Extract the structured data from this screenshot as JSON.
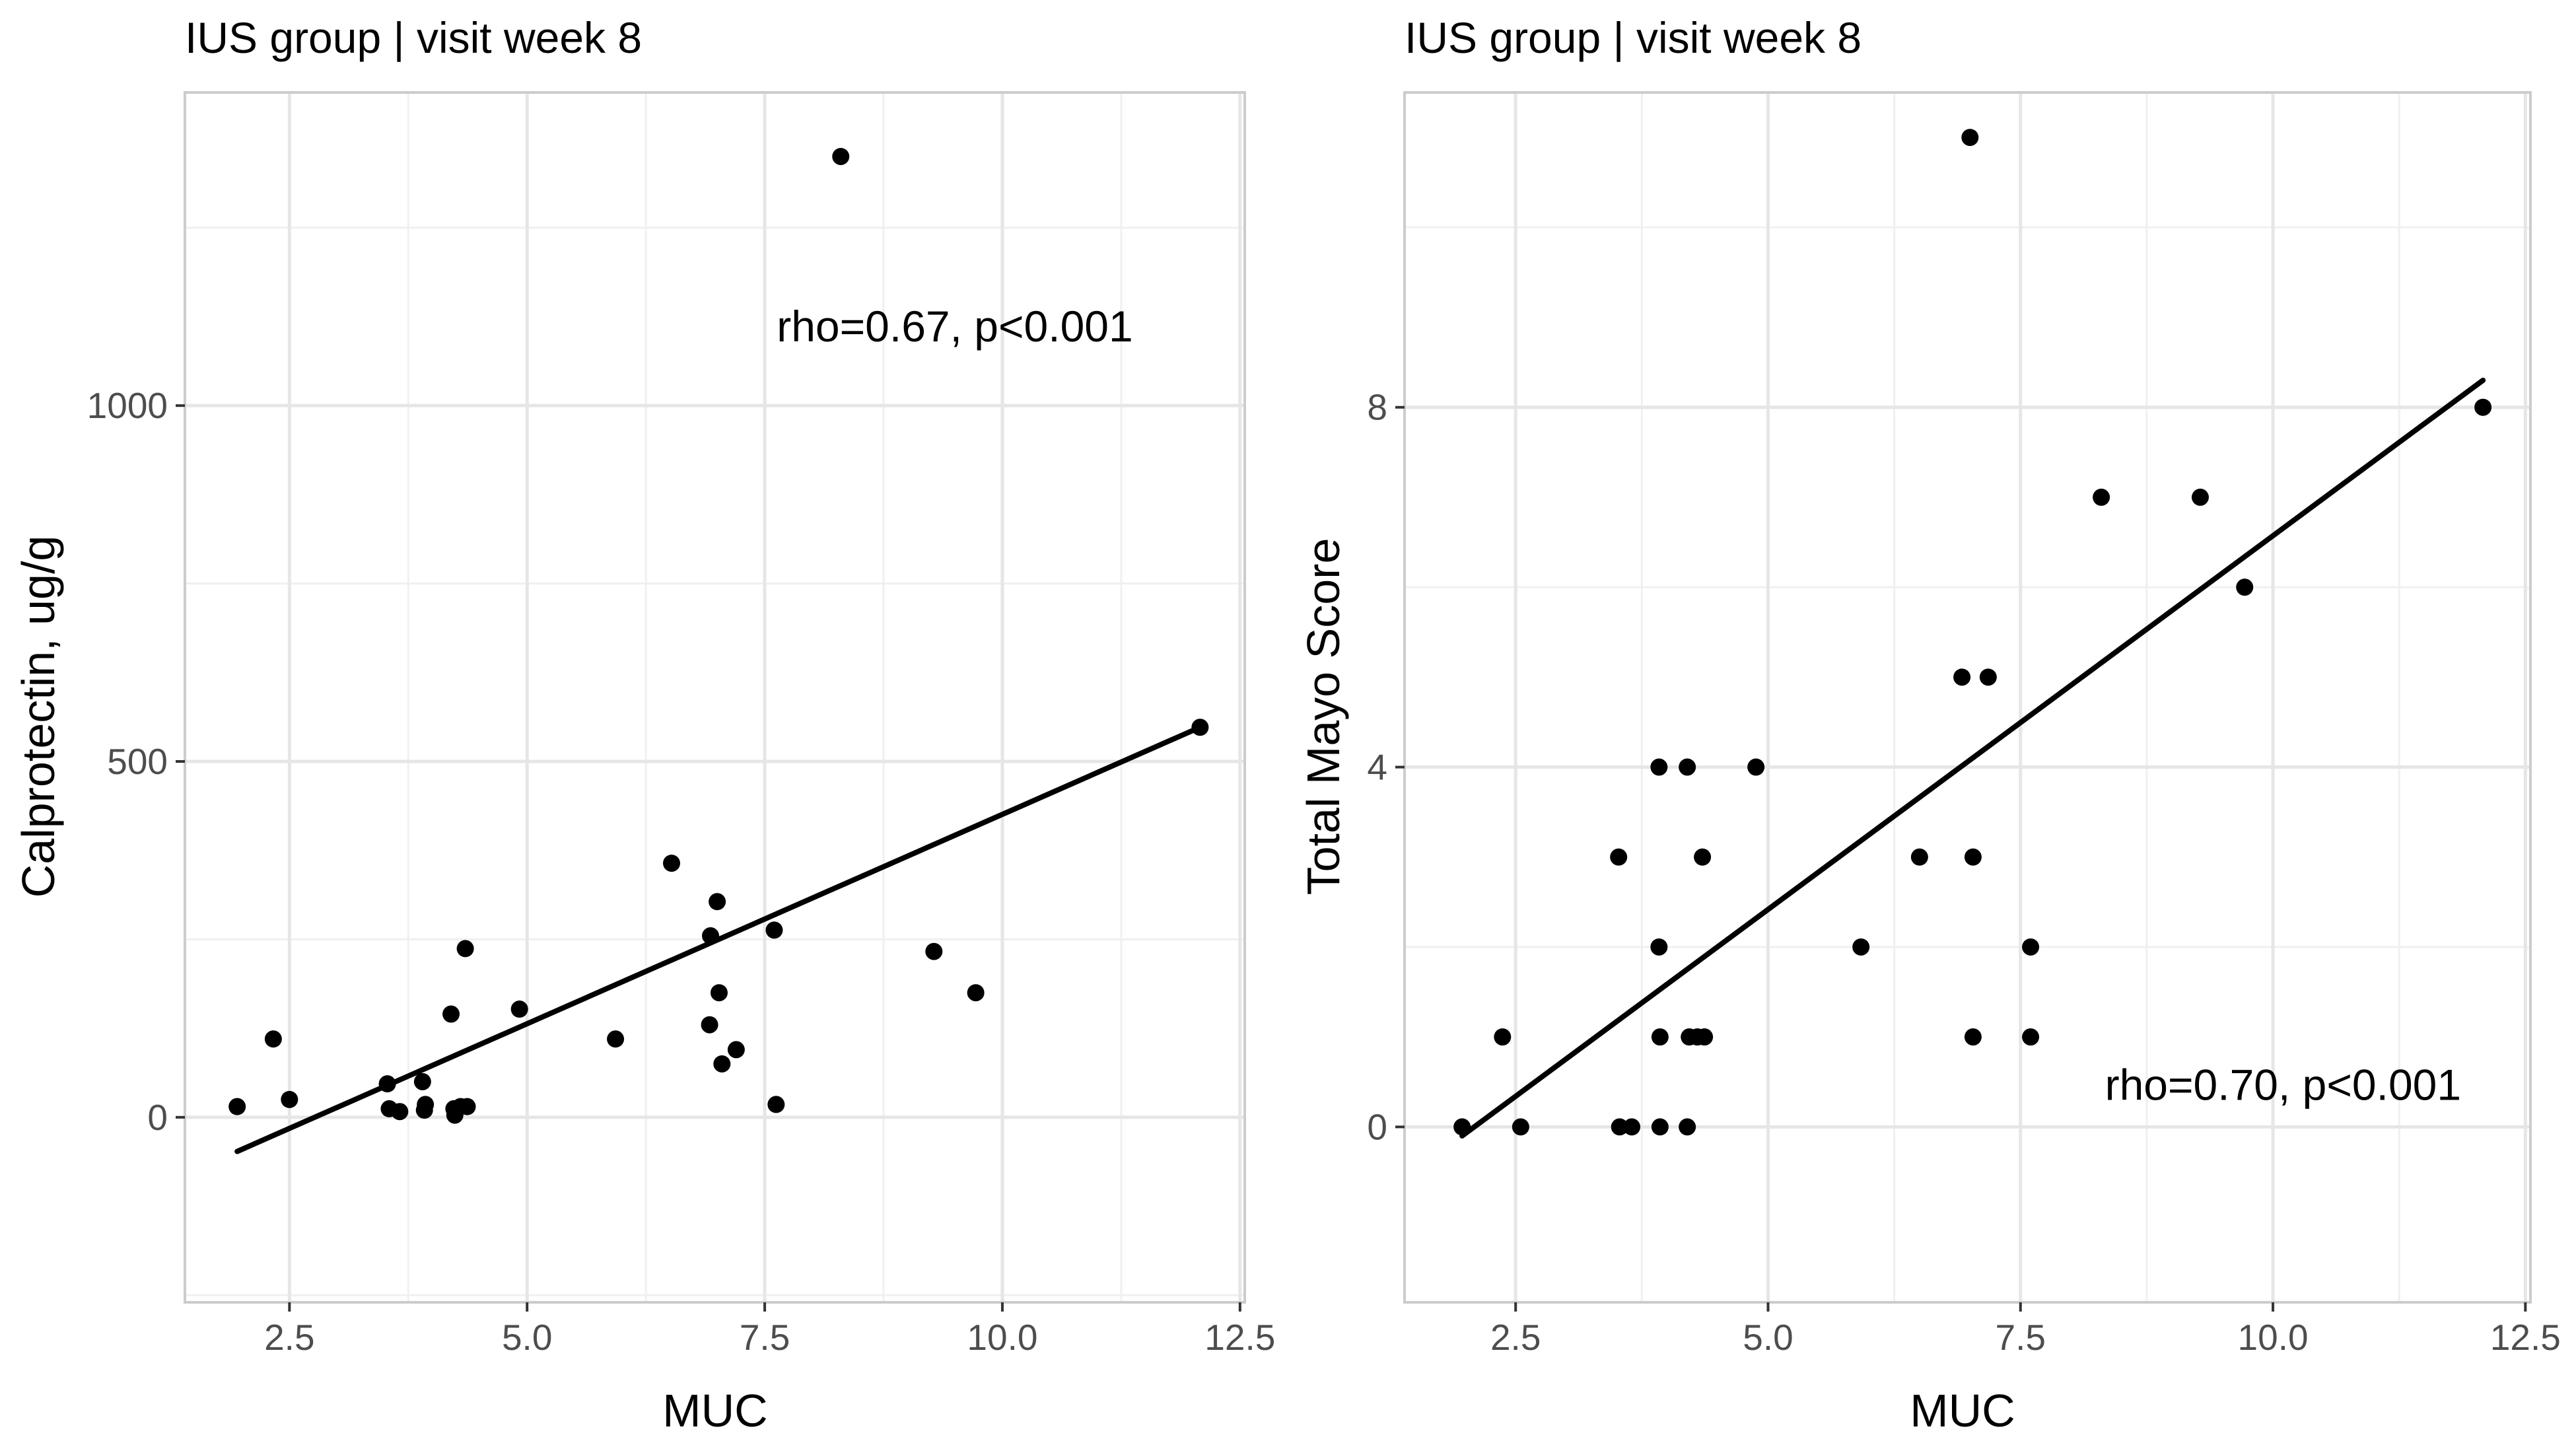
{
  "chart_data": [
    {
      "type": "scatter",
      "title": "IUS group | visit week 8",
      "xlabel": "MUC",
      "ylabel": "Calprotectin, ug/g",
      "annotation": "rho=0.67, p<0.001",
      "annotation_x": 9.5,
      "annotation_y": 1090,
      "xlim": [
        1.4,
        12.55
      ],
      "ylim": [
        -260,
        1440
      ],
      "x_ticks": [
        2.5,
        5.0,
        7.5,
        10.0,
        12.5
      ],
      "x_tick_labels": [
        "2.5",
        "5.0",
        "7.5",
        "10.0",
        "12.5"
      ],
      "y_ticks": [
        0,
        500,
        1000
      ],
      "y_tick_labels": [
        "0",
        "500",
        "1000"
      ],
      "x_minor": [
        3.75,
        6.25,
        8.75,
        11.25
      ],
      "y_minor": [
        -250,
        250,
        750,
        1250
      ],
      "points": [
        {
          "x": 1.95,
          "y": 15
        },
        {
          "x": 2.33,
          "y": 110
        },
        {
          "x": 2.5,
          "y": 25
        },
        {
          "x": 3.53,
          "y": 47
        },
        {
          "x": 3.55,
          "y": 12
        },
        {
          "x": 3.66,
          "y": 8
        },
        {
          "x": 3.9,
          "y": 50
        },
        {
          "x": 3.92,
          "y": 10
        },
        {
          "x": 3.93,
          "y": 18
        },
        {
          "x": 4.2,
          "y": 145
        },
        {
          "x": 4.23,
          "y": 12
        },
        {
          "x": 4.24,
          "y": 3
        },
        {
          "x": 4.3,
          "y": 15
        },
        {
          "x": 4.35,
          "y": 237
        },
        {
          "x": 4.37,
          "y": 15
        },
        {
          "x": 4.92,
          "y": 152
        },
        {
          "x": 5.93,
          "y": 110
        },
        {
          "x": 6.52,
          "y": 357
        },
        {
          "x": 6.92,
          "y": 130
        },
        {
          "x": 6.93,
          "y": 255
        },
        {
          "x": 7.0,
          "y": 303
        },
        {
          "x": 7.02,
          "y": 175
        },
        {
          "x": 7.05,
          "y": 75
        },
        {
          "x": 7.2,
          "y": 95
        },
        {
          "x": 7.6,
          "y": 263
        },
        {
          "x": 7.62,
          "y": 18
        },
        {
          "x": 8.3,
          "y": 1350
        },
        {
          "x": 9.28,
          "y": 233
        },
        {
          "x": 9.72,
          "y": 175
        },
        {
          "x": 12.08,
          "y": 548
        }
      ],
      "fit_line": {
        "x": [
          1.95,
          12.08
        ],
        "y": [
          -48,
          548
        ]
      }
    },
    {
      "type": "scatter",
      "title": "IUS group | visit week 8",
      "xlabel": "MUC",
      "ylabel": "Total Mayo Score",
      "annotation": "rho=0.70, p<0.001",
      "annotation_x": 10.1,
      "annotation_y": 0.3,
      "xlim": [
        1.4,
        12.55
      ],
      "ylim": [
        -1.95,
        11.5
      ],
      "x_ticks": [
        2.5,
        5.0,
        7.5,
        10.0,
        12.5
      ],
      "x_tick_labels": [
        "2.5",
        "5.0",
        "7.5",
        "10.0",
        "12.5"
      ],
      "y_ticks": [
        0,
        4,
        8
      ],
      "y_tick_labels": [
        "0",
        "4",
        "8"
      ],
      "x_minor": [
        3.75,
        6.25,
        8.75,
        11.25
      ],
      "y_minor": [
        -2,
        2,
        6,
        10
      ],
      "points": [
        {
          "x": 1.97,
          "y": 0
        },
        {
          "x": 2.37,
          "y": 1
        },
        {
          "x": 2.55,
          "y": 0
        },
        {
          "x": 3.52,
          "y": 3
        },
        {
          "x": 3.53,
          "y": 0
        },
        {
          "x": 3.65,
          "y": 0
        },
        {
          "x": 3.92,
          "y": 4
        },
        {
          "x": 3.92,
          "y": 2
        },
        {
          "x": 3.93,
          "y": 1
        },
        {
          "x": 3.93,
          "y": 0
        },
        {
          "x": 4.2,
          "y": 4
        },
        {
          "x": 4.2,
          "y": 0
        },
        {
          "x": 4.22,
          "y": 1
        },
        {
          "x": 4.3,
          "y": 1
        },
        {
          "x": 4.35,
          "y": 3
        },
        {
          "x": 4.37,
          "y": 1
        },
        {
          "x": 4.88,
          "y": 4
        },
        {
          "x": 5.92,
          "y": 2
        },
        {
          "x": 6.5,
          "y": 3
        },
        {
          "x": 6.92,
          "y": 5
        },
        {
          "x": 7.0,
          "y": 11
        },
        {
          "x": 7.03,
          "y": 3
        },
        {
          "x": 7.03,
          "y": 1
        },
        {
          "x": 7.18,
          "y": 5
        },
        {
          "x": 7.6,
          "y": 2
        },
        {
          "x": 7.6,
          "y": 1
        },
        {
          "x": 8.3,
          "y": 7
        },
        {
          "x": 9.28,
          "y": 7
        },
        {
          "x": 9.72,
          "y": 6
        },
        {
          "x": 12.08,
          "y": 8
        }
      ],
      "fit_line": {
        "x": [
          1.97,
          12.08
        ],
        "y": [
          -0.1,
          8.3
        ]
      }
    }
  ]
}
